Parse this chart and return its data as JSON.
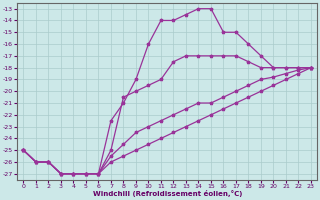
{
  "xlabel": "Windchill (Refroidissement éolien,°C)",
  "background_color": "#cce8e8",
  "grid_color": "#aacccc",
  "line_color": "#993399",
  "marker": "*",
  "x_ticks": [
    0,
    1,
    2,
    3,
    4,
    5,
    6,
    7,
    8,
    9,
    10,
    11,
    12,
    13,
    14,
    15,
    16,
    17,
    18,
    19,
    20,
    21,
    22,
    23
  ],
  "y_ticks": [
    -13,
    -14,
    -15,
    -16,
    -17,
    -18,
    -19,
    -20,
    -21,
    -22,
    -23,
    -24,
    -25,
    -26,
    -27
  ],
  "ylim": [
    -27.5,
    -12.5
  ],
  "xlim": [
    -0.5,
    23.5
  ],
  "series": [
    [
      -25.0,
      -26.0,
      -26.0,
      -27.0,
      -27.0,
      -27.0,
      -27.0,
      -26.0,
      -25.5,
      -25.0,
      -24.5,
      -24.0,
      -23.5,
      -23.0,
      -22.5,
      -22.0,
      -21.5,
      -21.0,
      -20.5,
      -20.0,
      -19.5,
      -19.0,
      -18.5,
      -18.0
    ],
    [
      -25.0,
      -26.0,
      -26.0,
      -27.0,
      -27.0,
      -27.0,
      -27.0,
      -25.5,
      -24.5,
      -23.5,
      -23.0,
      -22.5,
      -22.0,
      -21.5,
      -21.0,
      -21.0,
      -20.5,
      -20.0,
      -19.5,
      -19.0,
      -18.8,
      -18.5,
      -18.2,
      -18.0
    ],
    [
      -25.0,
      -26.0,
      -26.0,
      -27.0,
      -27.0,
      -27.0,
      -27.0,
      -25.0,
      -20.5,
      -20.0,
      -19.5,
      -19.0,
      -17.5,
      -17.0,
      -17.0,
      -17.0,
      -17.0,
      -17.0,
      -17.5,
      -18.0,
      -18.0,
      -18.0,
      -18.0,
      -18.0
    ],
    [
      -25.0,
      -26.0,
      -26.0,
      -27.0,
      -27.0,
      -27.0,
      -27.0,
      -22.5,
      -21.0,
      -19.0,
      -16.0,
      -14.0,
      -14.0,
      -13.5,
      -13.0,
      -13.0,
      -15.0,
      -15.0,
      -16.0,
      -17.0,
      -18.0,
      -18.0,
      -18.0,
      -18.0
    ]
  ]
}
